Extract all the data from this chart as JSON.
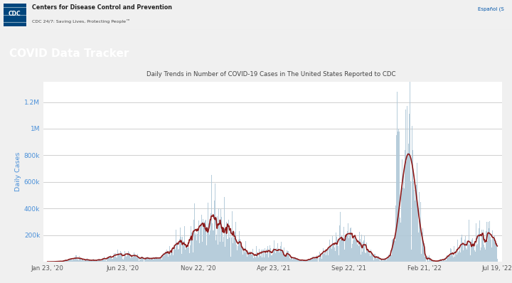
{
  "title_chart": "Daily Trends in Number of COVID-19 Cases in The United States Reported to CDC",
  "ylabel": "Daily Cases",
  "header_bg": "#007B8A",
  "header_title": "COVID Data Tracker",
  "top_bar_bg": "#ffffff",
  "cdc_text": "Centers for Disease Control and Prevention",
  "cdc_sub": "CDC 24/7: Saving Lives, Protecting People™",
  "espanol": "Español (S",
  "chart_bg": "#ffffff",
  "bar_color": "#b0c8d8",
  "line_color": "#8B1A1A",
  "yticks": [
    "200k",
    "400k",
    "600k",
    "800k",
    "1M",
    "1.2M"
  ],
  "ytick_vals": [
    200000,
    400000,
    600000,
    800000,
    1000000,
    1200000
  ],
  "xtick_labels": [
    "Jan 23, '20",
    "Jun 23, '20",
    "Nov 22, '20",
    "Apr 23, '21",
    "Sep 22, '21",
    "Feb 21, '22",
    "Jul 19, '22"
  ],
  "ymax": 1350000,
  "fig_bg": "#f0f0f0"
}
